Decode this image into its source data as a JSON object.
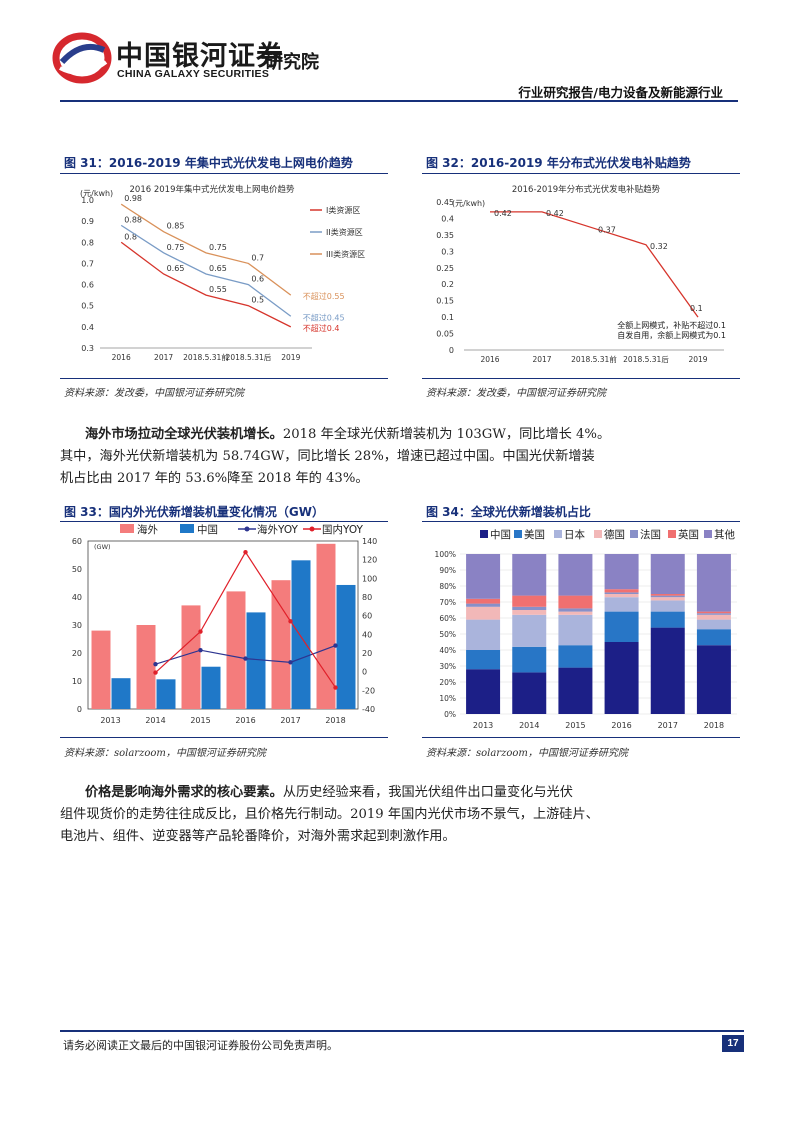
{
  "header": {
    "logo_cn": "中国银河证券",
    "logo_en": "CHINA GALAXY SECURITIES",
    "institute": "研究院",
    "report_type": "行业研究报告/电力设备及新能源行业"
  },
  "figure31": {
    "caption": "图 31：2016-2019 年集中式光伏发电上网电价趋势",
    "source": "资料来源：发改委，中国银河证券研究院",
    "chart_data": {
      "type": "line",
      "title": "2016 2019年集中式光伏发电上网电价趋势",
      "ylabel": "(元/kwh)",
      "categories": [
        "2016",
        "2017",
        "2018.5.31前",
        "2018.5.31后",
        "2019"
      ],
      "ylim": [
        0.3,
        1.0
      ],
      "yticks": [
        "1.0",
        "0.9",
        "0.8",
        "0.7",
        "0.6",
        "0.5",
        "0.4",
        "0.3"
      ],
      "series": [
        {
          "name": "I类资源区",
          "color": "#d6352c",
          "values": [
            0.8,
            0.65,
            0.55,
            0.5,
            0.4
          ],
          "labels": [
            "0.8",
            "0.65",
            "0.55",
            "0.5",
            "不超过0.4"
          ]
        },
        {
          "name": "II类资源区",
          "color": "#7a9cc6",
          "values": [
            0.88,
            0.75,
            0.65,
            0.6,
            0.45
          ],
          "labels": [
            "0.88",
            "0.75",
            "0.65",
            "0.6",
            "不超过0.45"
          ]
        },
        {
          "name": "III类资源区",
          "color": "#d9915a",
          "values": [
            0.98,
            0.85,
            0.75,
            0.7,
            0.55
          ],
          "labels": [
            "0.98",
            "0.85",
            "0.75",
            "0.7",
            "不超过0.55"
          ]
        }
      ]
    }
  },
  "figure32": {
    "caption": "图 32：2016-2019 年分布式光伏发电补贴趋势",
    "source": "资料来源：发改委，中国银河证券研究院",
    "chart_data": {
      "type": "line",
      "title": "2016-2019年分布式光伏发电补贴趋势",
      "ylabel": "(元/kwh)",
      "categories": [
        "2016",
        "2017",
        "2018.5.31前",
        "2018.5.31后",
        "2019"
      ],
      "ylim": [
        0,
        0.45
      ],
      "yticks": [
        "0.45",
        "0.4",
        "0.35",
        "0.3",
        "0.25",
        "0.2",
        "0.15",
        "0.1",
        "0.05",
        "0"
      ],
      "series": [
        {
          "color": "#d6352c",
          "values": [
            0.42,
            0.42,
            0.37,
            0.32,
            0.1
          ],
          "labels": [
            "0.42",
            "0.42",
            "0.37",
            "0.32",
            "0.1"
          ]
        }
      ],
      "annotation_line1": "全额上网模式，补贴不超过0.1",
      "annotation_line2": "自发自用，余额上网模式为0.1"
    }
  },
  "paragraph1": {
    "bold": "海外市场拉动全球光伏装机增长。",
    "text1": "2018 年全球光伏新增装机为 103GW，同比增长 4%。",
    "line2": "其中，海外光伏新增装机为 58.74GW，同比增长 28%，增速已超过中国。中国光伏新增装",
    "line3": "机占比由 2017 年的 53.6%降至 2018 年的 43%。"
  },
  "figure33": {
    "caption": "图 33：国内外光伏新增装机量变化情况（GW）",
    "source": "资料来源：solarzoom，中国银河证券研究院",
    "chart_data": {
      "type": "bar",
      "ylabel": "(GW)",
      "categories": [
        "2013",
        "2014",
        "2015",
        "2016",
        "2017",
        "2018"
      ],
      "ylim": [
        0,
        60
      ],
      "ylim_right": [
        -40,
        140
      ],
      "yticks": [
        "0",
        "10",
        "20",
        "30",
        "40",
        "50",
        "60"
      ],
      "yticks_right": [
        "-40",
        "-20",
        "0",
        "20",
        "40",
        "60",
        "80",
        "100",
        "120",
        "140"
      ],
      "series": [
        {
          "name": "海外",
          "type": "bar",
          "color": "#f47c7c",
          "values": [
            28,
            30,
            37,
            42,
            46,
            59
          ]
        },
        {
          "name": "中国",
          "type": "bar",
          "color": "#1f78c8",
          "values": [
            11,
            10.6,
            15.1,
            34.5,
            53.1,
            44.3
          ]
        },
        {
          "name": "海外YOY",
          "type": "line",
          "color": "#2d3591",
          "values": [
            null,
            8,
            23,
            14,
            10,
            28
          ]
        },
        {
          "name": "国内YOY",
          "type": "line",
          "color": "#e0202a",
          "values": [
            null,
            -1,
            43,
            128,
            54,
            -17
          ]
        }
      ]
    }
  },
  "figure34": {
    "caption": "图 34：全球光伏新增装机占比",
    "source": "资料来源：solarzoom，中国银河证券研究院",
    "chart_data": {
      "type": "bar",
      "stacked": true,
      "categories": [
        "2013",
        "2014",
        "2015",
        "2016",
        "2017",
        "2018"
      ],
      "ylim": [
        0,
        100
      ],
      "yticks": [
        "0%",
        "10%",
        "20%",
        "30%",
        "40%",
        "50%",
        "60%",
        "70%",
        "80%",
        "90%",
        "100%"
      ],
      "series": [
        {
          "name": "中国",
          "color": "#1c1f87",
          "values": [
            28,
            26,
            29,
            45,
            54,
            43
          ]
        },
        {
          "name": "美国",
          "color": "#2876c6",
          "values": [
            12,
            16,
            14,
            19,
            10,
            10
          ]
        },
        {
          "name": "日本",
          "color": "#aab4dc",
          "values": [
            19,
            20,
            19,
            9,
            7,
            6
          ]
        },
        {
          "name": "德国",
          "color": "#f2b8b8",
          "values": [
            8,
            3,
            2,
            2,
            2,
            3
          ]
        },
        {
          "name": "法国",
          "color": "#8890c8",
          "values": [
            2,
            2,
            2,
            1,
            1,
            1
          ]
        },
        {
          "name": "英国",
          "color": "#f07070",
          "values": [
            3,
            7,
            8,
            2,
            1,
            1
          ]
        },
        {
          "name": "其他",
          "color": "#8a82c4",
          "values": [
            28,
            26,
            26,
            22,
            25,
            36
          ]
        }
      ]
    }
  },
  "paragraph2": {
    "bold": "价格是影响海外需求的核心要素。",
    "text1": "从历史经验来看，我国光伏组件出口量变化与光伏",
    "line2": "组件现货价的走势往往成反比，且价格先行制动。2019 年国内光伏市场不景气，上游硅片、",
    "line3": "电池片、组件、逆变器等产品轮番降价，对海外需求起到刺激作用。"
  },
  "footer": {
    "disclaimer": "请务必阅读正文最后的中国银河证券股份公司免责声明。",
    "page": "17"
  }
}
